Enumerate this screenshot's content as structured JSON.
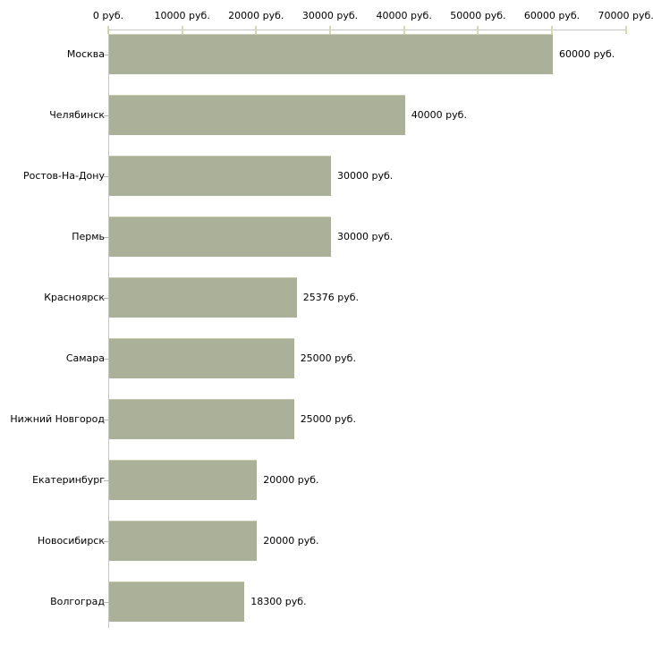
{
  "chart_data": {
    "type": "bar",
    "orientation": "horizontal",
    "title": "",
    "xlabel": "",
    "ylabel": "",
    "unit": "руб.",
    "categories": [
      "Москва",
      "Челябинск",
      "Ростов-На-Дону",
      "Пермь",
      "Красноярск",
      "Самара",
      "Нижний Новгород",
      "Екатеринбург",
      "Новосибирск",
      "Волгоград"
    ],
    "values": [
      60000,
      40000,
      30000,
      30000,
      25376,
      25000,
      25000,
      20000,
      20000,
      18300
    ],
    "value_labels": [
      "60000 руб.",
      "40000 руб.",
      "30000 руб.",
      "30000 руб.",
      "25376 руб.",
      "25000 руб.",
      "25000 руб.",
      "20000 руб.",
      "20000 руб.",
      "18300 руб."
    ],
    "x_axis": {
      "position": "top",
      "range": [
        0,
        70000
      ],
      "ticks": [
        0,
        10000,
        20000,
        30000,
        40000,
        50000,
        60000,
        70000
      ],
      "tick_labels": [
        "0 руб.",
        "10000 руб.",
        "20000 руб.",
        "30000 руб.",
        "40000 руб.",
        "50000 руб.",
        "60000 руб.",
        "70000 руб."
      ]
    },
    "grid": "off",
    "legend": "none",
    "colors": {
      "bar": "#abb198",
      "bar_highlight": "#c6cab2",
      "axis_line": "#c6c6c6",
      "x_tick_mark": "#d9d9b0",
      "category_tick_mark": "#b5b5b5",
      "text": "#000000",
      "background": "#ffffff"
    }
  }
}
